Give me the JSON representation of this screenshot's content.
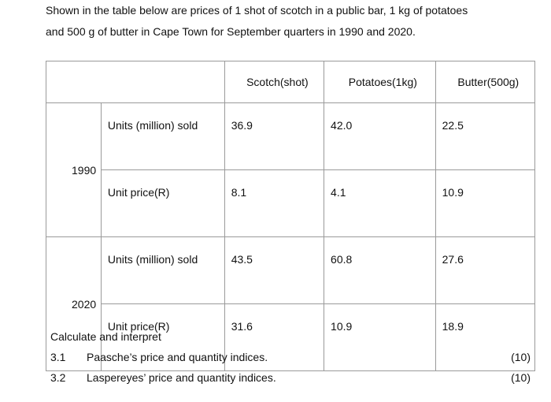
{
  "intro": {
    "line1": "Shown in the table below are prices of 1 shot of scotch in a public bar, 1 kg of potatoes",
    "line2": "and 500 g of butter in Cape Town for September quarters in 1990 and 2020."
  },
  "table": {
    "headers": [
      "",
      "Scotch(shot)",
      "Potatoes(1kg)",
      "Butter(500g)"
    ],
    "groups": [
      {
        "year": "1990",
        "rows": [
          {
            "label": "Units (million) sold",
            "values": [
              "36.9",
              "42.0",
              "22.5"
            ]
          },
          {
            "label": "Unit price(R)",
            "values": [
              "8.1",
              "4.1",
              "10.9"
            ]
          }
        ]
      },
      {
        "year": "2020",
        "rows": [
          {
            "label": "Units (million) sold",
            "values": [
              "43.5",
              "60.8",
              "27.6"
            ]
          },
          {
            "label": "Unit price(R)",
            "values": [
              "31.6",
              "10.9",
              "18.9"
            ]
          }
        ]
      }
    ]
  },
  "questions": {
    "heading": "Calculate and interpret",
    "items": [
      {
        "num": "3.1",
        "text": "Paasche’s price and quantity indices.",
        "marks": "(10)"
      },
      {
        "num": "3.2",
        "text": "Laspereyes’ price and quantity indices.",
        "marks": "(10)"
      }
    ]
  }
}
